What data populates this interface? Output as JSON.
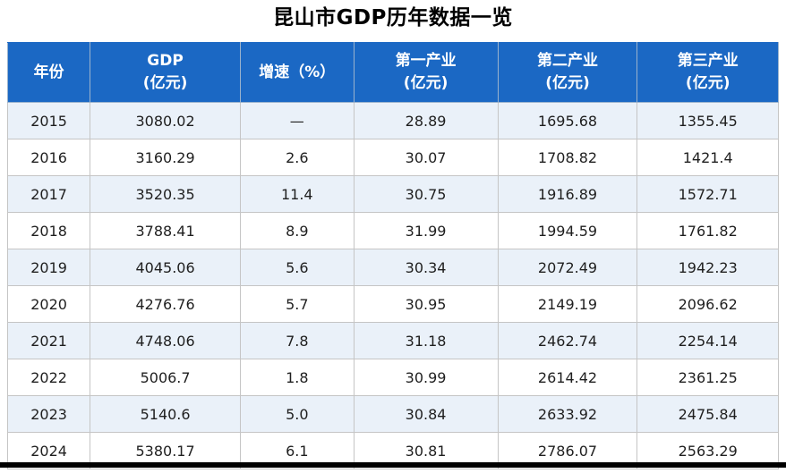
{
  "page": {
    "title": "昆山市GDP历年数据一览"
  },
  "table": {
    "headers": [
      {
        "line1": "年份",
        "line2": ""
      },
      {
        "line1": "GDP",
        "line2": "(亿元)"
      },
      {
        "line1": "增速（%）",
        "line2": ""
      },
      {
        "line1": "第一产业",
        "line2": "(亿元)"
      },
      {
        "line1": "第二产业",
        "line2": "(亿元)"
      },
      {
        "line1": "第三产业",
        "line2": "(亿元)"
      }
    ],
    "rows": [
      [
        "2015",
        "3080.02",
        "—",
        "28.89",
        "1695.68",
        "1355.45"
      ],
      [
        "2016",
        "3160.29",
        "2.6",
        "30.07",
        "1708.82",
        "1421.4"
      ],
      [
        "2017",
        "3520.35",
        "11.4",
        "30.75",
        "1916.89",
        "1572.71"
      ],
      [
        "2018",
        "3788.41",
        "8.9",
        "31.99",
        "1994.59",
        "1761.82"
      ],
      [
        "2019",
        "4045.06",
        "5.6",
        "30.34",
        "2072.49",
        "1942.23"
      ],
      [
        "2020",
        "4276.76",
        "5.7",
        "30.95",
        "2149.19",
        "2096.62"
      ],
      [
        "2021",
        "4748.06",
        "7.8",
        "31.18",
        "2462.74",
        "2254.14"
      ],
      [
        "2022",
        "5006.7",
        "1.8",
        "30.99",
        "2614.42",
        "2361.25"
      ],
      [
        "2023",
        "5140.6",
        "5.0",
        "30.84",
        "2633.92",
        "2475.84"
      ],
      [
        "2024",
        "5380.17",
        "6.1",
        "30.81",
        "2786.07",
        "2563.29"
      ]
    ]
  },
  "colors": {
    "header_bg": "#1B68C4",
    "header_text": "#FFFFFF",
    "row_alt_bg": "#EAF1F9",
    "row_bg": "#FFFFFF",
    "border": "#C5C5C5",
    "cell_text": "#1F1F1F",
    "page_bg": "#FFFFFF",
    "bottom_bar": "#000000"
  }
}
